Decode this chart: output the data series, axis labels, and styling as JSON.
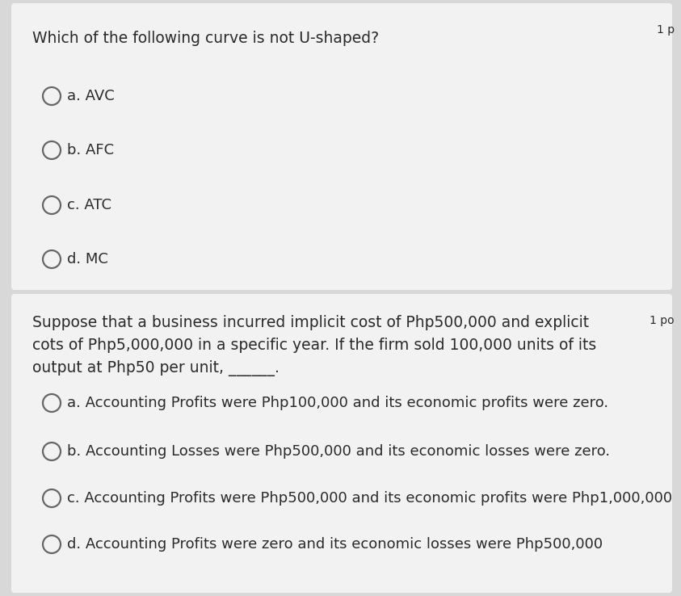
{
  "bg_color": "#d8d8d8",
  "card_bg": "#f2f2f2",
  "text_color": "#2a2a2a",
  "circle_edge_color": "#666666",
  "q1_title": "Which of the following curve is not U-shaped?",
  "q1_points": "1 p",
  "q1_options": [
    "a. AVC",
    "b. AFC",
    "c. ATC",
    "d. MC"
  ],
  "q2_title_lines": [
    "Suppose that a business incurred implicit cost of Php500,000 and explicit",
    "cots of Php5,000,000 in a specific year. If the firm sold 100,000 units of its",
    "output at Php50 per unit, ______."
  ],
  "q2_points": "1 po",
  "q2_options": [
    "a. Accounting Profits were Php100,000 and its economic profits were zero.",
    "b. Accounting Losses were Php500,000 and its economic losses were zero.",
    "c. Accounting Profits were Php500,000 and its economic profits were Php1,000,000",
    "d. Accounting Profits were zero and its economic losses were Php500,000"
  ],
  "fig_w": 8.43,
  "fig_h": 7.38,
  "dpi": 100
}
